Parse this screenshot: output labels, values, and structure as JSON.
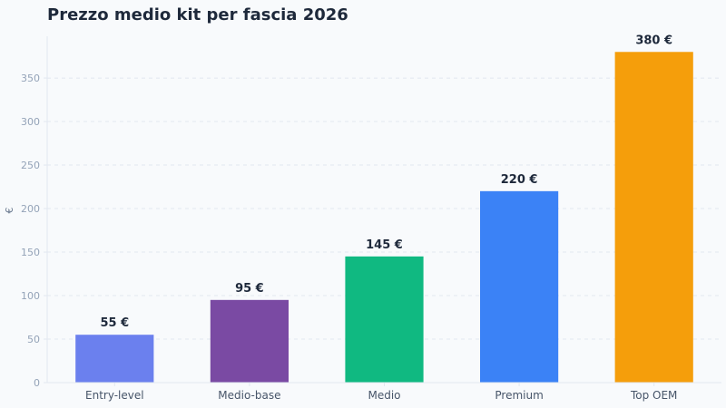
{
  "chart_data": {
    "type": "bar",
    "title": "Prezzo medio kit per fascia 2026",
    "xlabel": "",
    "ylabel": "€",
    "categories": [
      "Entry-level",
      "Medio-base",
      "Medio",
      "Premium",
      "Top OEM"
    ],
    "values": [
      55,
      95,
      145,
      220,
      380
    ],
    "data_labels": [
      "55 €",
      "95 €",
      "145 €",
      "220 €",
      "380 €"
    ],
    "colors": [
      "#6b80ee",
      "#7a4aa3",
      "#10b981",
      "#3b82f6",
      "#f59e0b"
    ],
    "ylim": [
      0,
      398
    ],
    "yticks": [
      0,
      50,
      100,
      150,
      200,
      250,
      300,
      350
    ],
    "grid": true,
    "legend": "none"
  }
}
